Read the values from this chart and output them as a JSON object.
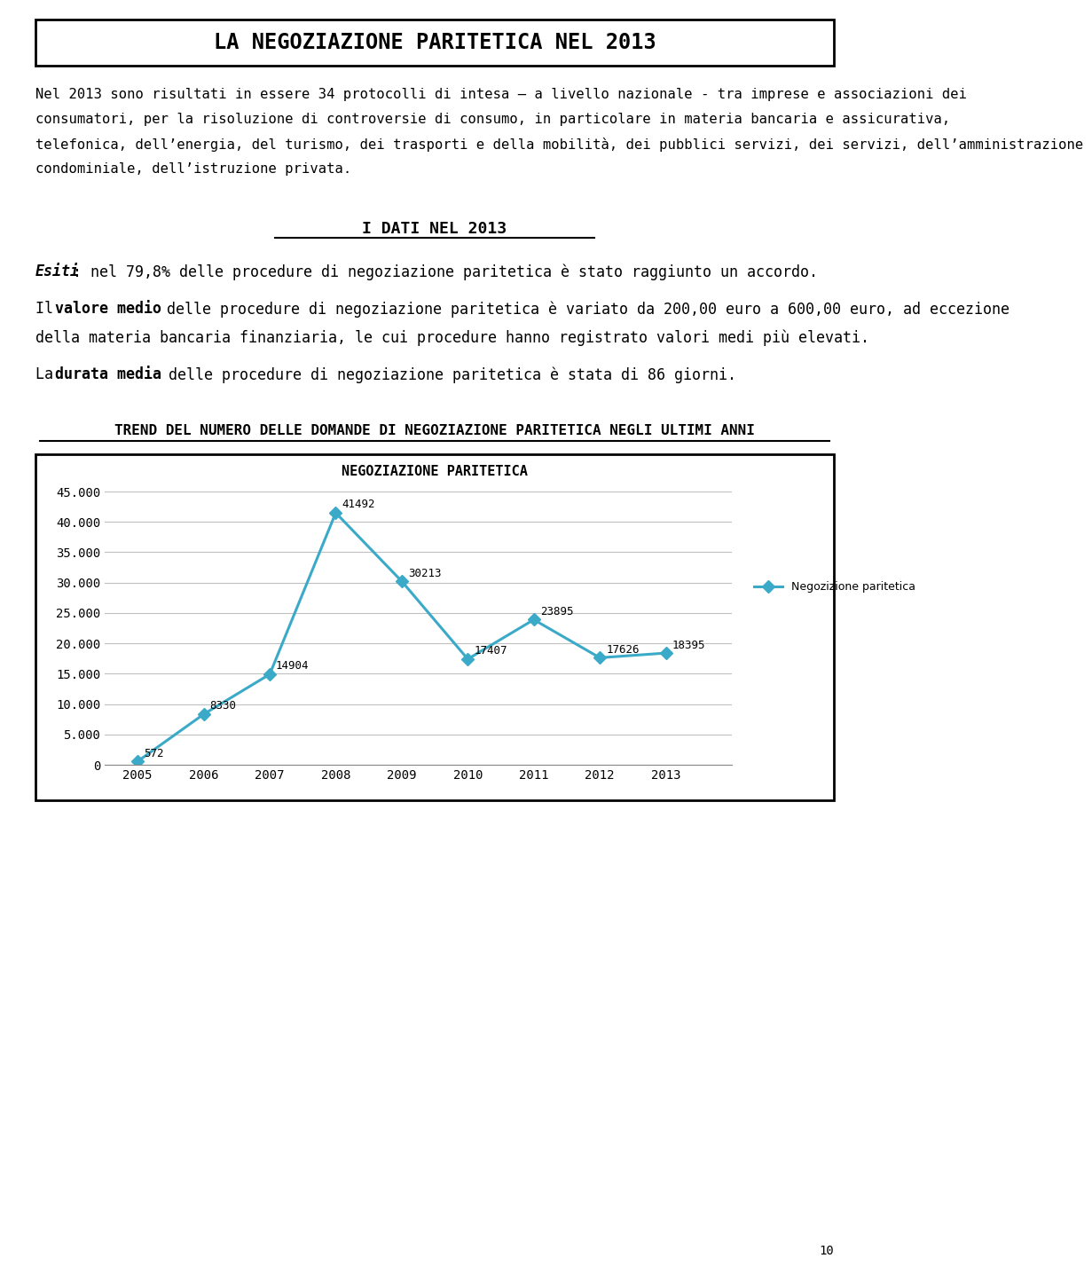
{
  "title": "LA NEGOZIAZIONE PARITETICA NEL 2013",
  "para1_lines": [
    "Nel 2013 sono risultati in essere 34 protocolli di intesa – a livello nazionale - tra imprese e associazioni dei",
    "consumatori, per la risoluzione di controversie di consumo, in particolare in materia bancaria e assicurativa,",
    "telefonica, dell’energia, del turismo, dei trasporti e della mobilità, dei pubblici servizi, dei servizi, dell’amministrazione",
    "condominiale, dell’istruzione privata."
  ],
  "section_title": "I DATI NEL 2013",
  "esiti_bold": "Esiti",
  "esiti_text": ": nel 79,8% delle procedure di negoziazione paritetica è stato raggiunto un accordo.",
  "valore_pre": "Il ",
  "valore_bold": "valore medio",
  "valore_text": " delle procedure di negoziazione paritetica è variato da 200,00 euro a 600,00 euro, ad eccezione",
  "valore_text2": "della materia bancaria finanziaria, le cui procedure hanno registrato valori medi più elevati.",
  "durata_pre": "La ",
  "durata_bold": "durata media",
  "durata_text": " delle procedure di negoziazione paritetica è stata di 86 giorni.",
  "chart_section_title": "TREND DEL NUMERO DELLE DOMANDE DI NEGOZIAZIONE PARITETICA NEGLI ULTIMI ANNI",
  "chart_title": "NEGOZIAZIONE PARITETICA",
  "legend_label": "Negozizione paritetica",
  "years": [
    2005,
    2006,
    2007,
    2008,
    2009,
    2010,
    2011,
    2012,
    2013
  ],
  "values": [
    572,
    8330,
    14904,
    41492,
    30213,
    17407,
    23895,
    17626,
    18395
  ],
  "line_color": "#3aaac8",
  "bg_color": "#ffffff",
  "grid_color": "#c0c0c0",
  "ylim": [
    0,
    45000
  ],
  "yticks": [
    0,
    5000,
    10000,
    15000,
    20000,
    25000,
    30000,
    35000,
    40000,
    45000
  ],
  "page_number": "10"
}
